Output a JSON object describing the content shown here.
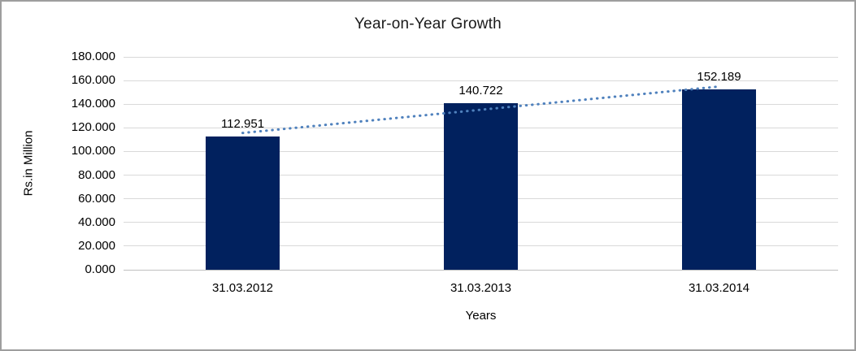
{
  "window": {
    "background": "#ffffff",
    "border_color": "#9e9e9e"
  },
  "chart_data": {
    "type": "bar",
    "title": "Year-on-Year Growth",
    "xlabel": "Years",
    "ylabel": "Rs.in Million",
    "categories": [
      "31.03.2012",
      "31.03.2013",
      "31.03.2014"
    ],
    "values": [
      112.951,
      140.722,
      152.189
    ],
    "value_labels": [
      "112.951",
      "140.722",
      "152.189"
    ],
    "ylim": [
      0,
      180
    ],
    "ytick_labels": [
      "0.000",
      "20.000",
      "40.000",
      "60.000",
      "80.000",
      "100.000",
      "120.000",
      "140.000",
      "160.000",
      "180.000"
    ],
    "grid": true,
    "legend": "none",
    "bar_color": "#01215e",
    "gridline_color": "#d9d9d9",
    "axis_line_color": "#bfbfbf",
    "text_color": "#000000",
    "trendline": {
      "type": "linear",
      "style": "dotted",
      "color": "#4f81bd"
    }
  }
}
